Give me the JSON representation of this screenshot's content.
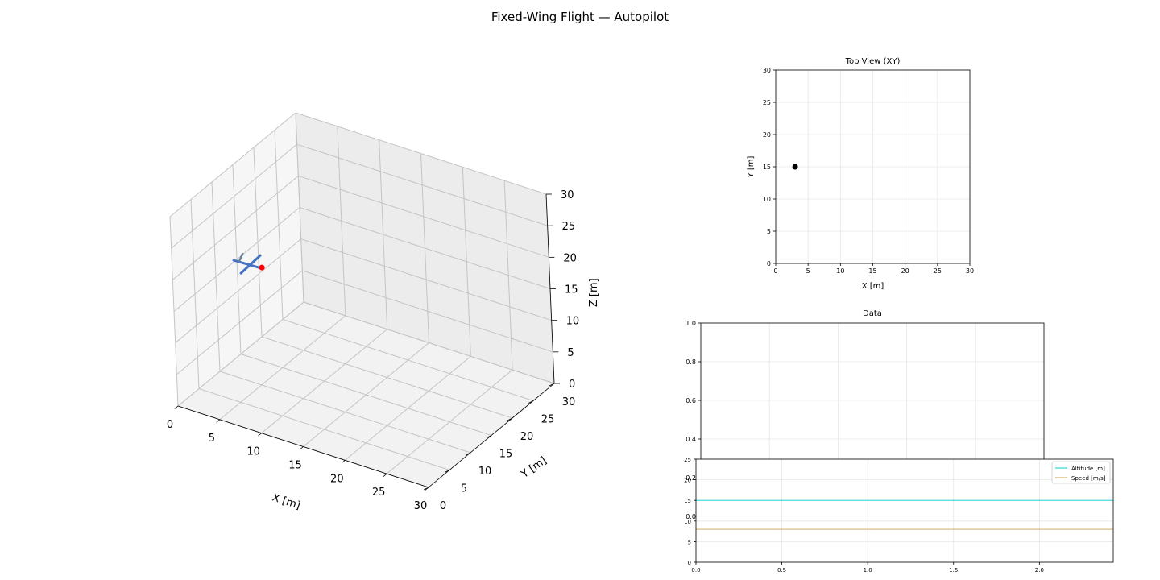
{
  "figure": {
    "title": "Fixed-Wing Flight — Autopilot"
  },
  "chart_data": [
    {
      "type": "scatter3d",
      "xlabel": "X [m]",
      "ylabel": "Y [m]",
      "zlabel": "Z [m]",
      "xlim": [
        0,
        30
      ],
      "ylim": [
        0,
        30
      ],
      "zlim": [
        0,
        30
      ],
      "xticks": [
        "0",
        "5",
        "10",
        "15",
        "20",
        "25",
        "30"
      ],
      "yticks": [
        "0",
        "5",
        "10",
        "15",
        "20",
        "25",
        "30"
      ],
      "zticks": [
        "0",
        "5",
        "10",
        "15",
        "20",
        "25",
        "30"
      ],
      "grid": true,
      "aircraft": {
        "x": 3,
        "y": 15,
        "z": 15,
        "marker_color": "#ff0000"
      }
    },
    {
      "type": "scatter",
      "title": "Top View (XY)",
      "xlabel": "X [m]",
      "ylabel": "Y [m]",
      "xlim": [
        0,
        30
      ],
      "ylim": [
        0,
        30
      ],
      "xticks": [
        "0",
        "5",
        "10",
        "15",
        "20",
        "25",
        "30"
      ],
      "yticks": [
        "0",
        "5",
        "10",
        "15",
        "20",
        "25",
        "30"
      ],
      "grid": true,
      "points": [
        {
          "x": 3,
          "y": 15
        }
      ]
    },
    {
      "type": "line",
      "title": "Data",
      "xlim": [
        0,
        1
      ],
      "ylim": [
        0,
        1
      ],
      "yticks": [
        "0.0",
        "0.2",
        "0.4",
        "0.6",
        "0.8",
        "1.0"
      ],
      "grid": true,
      "series": []
    },
    {
      "type": "line",
      "xlim": [
        0,
        2.43
      ],
      "ylim": [
        0,
        25
      ],
      "xticks": [
        "0.0",
        "0.5",
        "1.0",
        "1.5",
        "2.0"
      ],
      "yticks": [
        "0",
        "5",
        "10",
        "15",
        "20",
        "25"
      ],
      "grid": true,
      "legend": "top-right",
      "series": [
        {
          "name": "Altitude [m]",
          "color": "#00d0d0",
          "x": [
            0,
            2.43
          ],
          "values": [
            15,
            15
          ]
        },
        {
          "name": "Speed [m/s]",
          "color": "#c8a050",
          "x": [
            0,
            2.43
          ],
          "values": [
            8,
            8
          ]
        }
      ]
    }
  ]
}
